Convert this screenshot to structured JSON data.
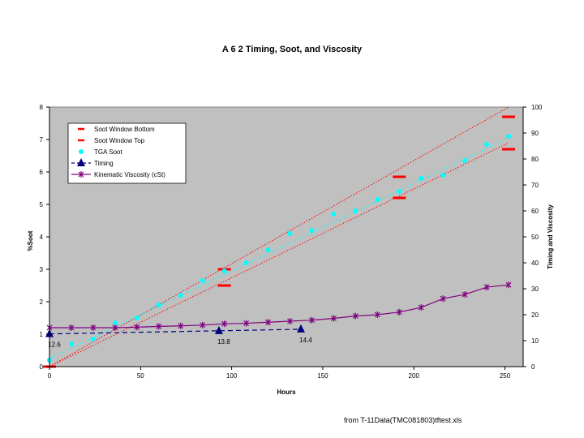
{
  "chart_data": {
    "type": "scatter",
    "title": "A 6 2 Timing, Soot, and Viscosity",
    "xlabel": "Hours",
    "ylabel_left": "%Soot",
    "ylabel_right": "Timing and Viscosity",
    "xlim": [
      0,
      260
    ],
    "ylim_left": [
      0,
      8
    ],
    "ylim_right": [
      0,
      100
    ],
    "xticks": [
      0,
      50,
      100,
      150,
      200,
      250
    ],
    "yticks_left": [
      0,
      1,
      2,
      3,
      4,
      5,
      6,
      7,
      8
    ],
    "yticks_right": [
      0,
      10,
      20,
      30,
      40,
      50,
      60,
      70,
      80,
      90,
      100
    ],
    "grid": false,
    "legend_position": "top-left",
    "plot_background": "#c0c0c0",
    "series": [
      {
        "name": "Soot Window Bottom",
        "axis": "left",
        "marker": "dash",
        "color": "#ff0000",
        "x": [
          0,
          96,
          192,
          252
        ],
        "y": [
          0.0,
          2.5,
          5.2,
          6.7
        ]
      },
      {
        "name": "Soot Window Top",
        "axis": "left",
        "marker": "dash",
        "color": "#ff0000",
        "x": [
          0,
          96,
          192,
          252
        ],
        "y": [
          0.0,
          3.0,
          5.85,
          7.7
        ]
      },
      {
        "name": "TGA Soot",
        "axis": "left",
        "marker": "circle",
        "color": "#00ffff",
        "x": [
          0,
          12,
          24,
          36,
          48,
          60,
          72,
          84,
          96,
          108,
          120,
          132,
          144,
          156,
          168,
          180,
          192,
          204,
          216,
          228,
          240,
          252
        ],
        "y": [
          0.2,
          0.7,
          0.85,
          1.35,
          1.5,
          1.9,
          2.2,
          2.65,
          2.95,
          3.2,
          3.6,
          4.1,
          4.2,
          4.7,
          4.8,
          5.15,
          5.4,
          5.8,
          5.9,
          6.35,
          6.85,
          7.1
        ]
      },
      {
        "name": "Timing",
        "axis": "right",
        "marker": "triangle",
        "color": "#000080",
        "x": [
          0,
          93,
          138
        ],
        "y": [
          12.6,
          13.8,
          14.4
        ],
        "labels": [
          "12.6",
          "13.8",
          "14.4"
        ]
      },
      {
        "name": "Kinematic Viscosity (cSt)",
        "axis": "right",
        "marker": "star",
        "color": "#800080",
        "x": [
          0,
          12,
          24,
          36,
          48,
          60,
          72,
          84,
          96,
          108,
          120,
          132,
          144,
          156,
          168,
          180,
          192,
          204,
          216,
          228,
          240,
          252
        ],
        "y": [
          15.0,
          15.0,
          15.0,
          15.0,
          15.2,
          15.5,
          15.7,
          16.0,
          16.5,
          16.7,
          17.1,
          17.5,
          17.9,
          18.6,
          19.5,
          20.0,
          21.0,
          22.8,
          26.2,
          27.8,
          30.6,
          31.5
        ]
      }
    ],
    "trendlines": [
      {
        "axis": "left",
        "x": [
          0,
          252
        ],
        "y": [
          0.0,
          8.0
        ],
        "color": "#ff0000",
        "style": "dotted"
      },
      {
        "axis": "left",
        "x": [
          0,
          252
        ],
        "y": [
          0.0,
          6.9
        ],
        "color": "#ff0000",
        "style": "dotted"
      },
      {
        "axis": "left",
        "x": [
          0,
          252
        ],
        "y": [
          0.25,
          7.05
        ],
        "color": "#00ffff",
        "style": "dotted"
      }
    ]
  },
  "footer": {
    "source": "from T-11Data(TMC081803)tftest.xls"
  }
}
